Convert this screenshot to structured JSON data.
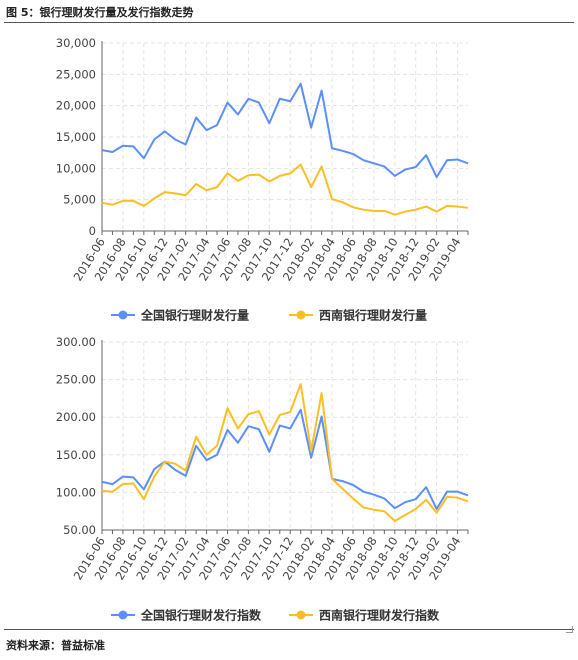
{
  "figure_title": "图 5：银行理财发行量及发行指数走势",
  "source": "资料来源：普益标准",
  "colors": {
    "national": "#5B8FF9",
    "southwest": "#FBBF24",
    "grid": "#e3e3e3",
    "axis": "#666666"
  },
  "chart_data": [
    {
      "type": "line",
      "title": "",
      "xlabel": "",
      "ylabel": "",
      "ylim": [
        0,
        30000
      ],
      "yticks": [
        "0",
        "5,000",
        "10,000",
        "15,000",
        "20,000",
        "25,000",
        "30,000"
      ],
      "grid": true,
      "legend_position": "bottom-center",
      "x": [
        "2016-06",
        "2016-07",
        "2016-08",
        "2016-09",
        "2016-10",
        "2016-11",
        "2016-12",
        "2017-01",
        "2017-02",
        "2017-03",
        "2017-04",
        "2017-05",
        "2017-06",
        "2017-07",
        "2017-08",
        "2017-09",
        "2017-10",
        "2017-11",
        "2017-12",
        "2018-01",
        "2018-02",
        "2018-03",
        "2018-04",
        "2018-05",
        "2018-06",
        "2018-07",
        "2018-08",
        "2018-09",
        "2018-10",
        "2018-11",
        "2018-12",
        "2019-01",
        "2019-02",
        "2019-03",
        "2019-04",
        "2019-05"
      ],
      "x_tick_labels": [
        "2016-06",
        "2016-08",
        "2016-10",
        "2016-12",
        "2017-02",
        "2017-04",
        "2017-06",
        "2017-08",
        "2017-10",
        "2017-12",
        "2018-02",
        "2018-04",
        "2018-06",
        "2018-08",
        "2018-10",
        "2018-12",
        "2019-02",
        "2019-04"
      ],
      "series": [
        {
          "name": "全国银行理财发行量",
          "color": "#5B8FF9",
          "values": [
            12900,
            12600,
            13600,
            13500,
            11600,
            14600,
            15900,
            14600,
            13800,
            18100,
            16100,
            16900,
            20500,
            18600,
            21100,
            20500,
            17200,
            21100,
            20700,
            23500,
            16500,
            22400,
            13200,
            12800,
            12300,
            11300,
            10800,
            10300,
            8800,
            9800,
            10200,
            12100,
            8600,
            11300,
            11400,
            10800
          ]
        },
        {
          "name": "西南银行理财发行量",
          "color": "#FBBF24",
          "values": [
            4500,
            4200,
            4800,
            4800,
            4000,
            5200,
            6200,
            6000,
            5700,
            7500,
            6500,
            7000,
            9200,
            8000,
            8900,
            9000,
            7900,
            8800,
            9200,
            10600,
            7000,
            10300,
            5100,
            4600,
            3800,
            3400,
            3200,
            3200,
            2600,
            3100,
            3400,
            3900,
            3100,
            4000,
            3900,
            3700
          ]
        }
      ]
    },
    {
      "type": "line",
      "title": "",
      "xlabel": "",
      "ylabel": "",
      "ylim": [
        50,
        300
      ],
      "yticks": [
        "50.00",
        "100.00",
        "150.00",
        "200.00",
        "250.00",
        "300.00"
      ],
      "grid": true,
      "legend_position": "bottom-center",
      "x": [
        "2016-06",
        "2016-07",
        "2016-08",
        "2016-09",
        "2016-10",
        "2016-11",
        "2016-12",
        "2017-01",
        "2017-02",
        "2017-03",
        "2017-04",
        "2017-05",
        "2017-06",
        "2017-07",
        "2017-08",
        "2017-09",
        "2017-10",
        "2017-11",
        "2017-12",
        "2018-01",
        "2018-02",
        "2018-03",
        "2018-04",
        "2018-05",
        "2018-06",
        "2018-07",
        "2018-08",
        "2018-09",
        "2018-10",
        "2018-11",
        "2018-12",
        "2019-01",
        "2019-02",
        "2019-03",
        "2019-04",
        "2019-05"
      ],
      "x_tick_labels": [
        "2016-06",
        "2016-08",
        "2016-10",
        "2016-12",
        "2017-02",
        "2017-04",
        "2017-06",
        "2017-08",
        "2017-10",
        "2017-12",
        "2018-02",
        "2018-04",
        "2018-06",
        "2018-08",
        "2018-10",
        "2018-12",
        "2019-02",
        "2019-04"
      ],
      "series": [
        {
          "name": "全国银行理财发行指数",
          "color": "#5B8FF9",
          "values": [
            114,
            111,
            121,
            120,
            104,
            131,
            141,
            130,
            122,
            162,
            143,
            150,
            183,
            166,
            188,
            184,
            154,
            189,
            185,
            210,
            146,
            201,
            118,
            115,
            110,
            101,
            97,
            92,
            79,
            87,
            91,
            107,
            78,
            101,
            101,
            96
          ]
        },
        {
          "name": "西南银行理财发行指数",
          "color": "#FBBF24",
          "values": [
            102,
            101,
            111,
            112,
            91,
            121,
            141,
            138,
            129,
            174,
            150,
            162,
            212,
            185,
            204,
            208,
            177,
            203,
            207,
            244,
            155,
            232,
            118,
            105,
            92,
            80,
            77,
            75,
            62,
            70,
            78,
            90,
            73,
            94,
            93,
            88
          ]
        }
      ]
    }
  ]
}
